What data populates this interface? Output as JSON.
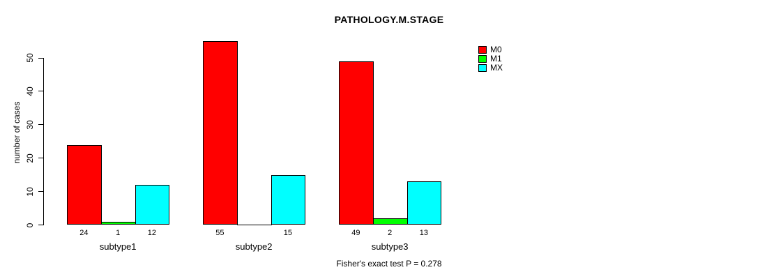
{
  "chart_data": {
    "type": "bar",
    "title": "PATHOLOGY.M.STAGE",
    "ylabel": "number of cases",
    "xlabel": "",
    "categories": [
      "subtype1",
      "subtype2",
      "subtype3"
    ],
    "series": [
      {
        "name": "M0",
        "color": "#FF0000",
        "values": [
          24,
          55,
          49
        ]
      },
      {
        "name": "M1",
        "color": "#00FF00",
        "values": [
          1,
          0,
          2
        ]
      },
      {
        "name": "MX",
        "color": "#00FFFF",
        "values": [
          12,
          15,
          13
        ]
      }
    ],
    "bar_value_labels": [
      [
        "24",
        "1",
        "12"
      ],
      [
        "55",
        "",
        "15"
      ],
      [
        "49",
        "2",
        "13"
      ]
    ],
    "ylim": [
      0,
      50
    ],
    "yticks": [
      0,
      10,
      20,
      30,
      40,
      50
    ],
    "grid": false,
    "legend_position": "top-right",
    "legend_entries": [
      "M0",
      "M1",
      "MX"
    ],
    "caption": "Fisher's exact test P = 0.278"
  }
}
